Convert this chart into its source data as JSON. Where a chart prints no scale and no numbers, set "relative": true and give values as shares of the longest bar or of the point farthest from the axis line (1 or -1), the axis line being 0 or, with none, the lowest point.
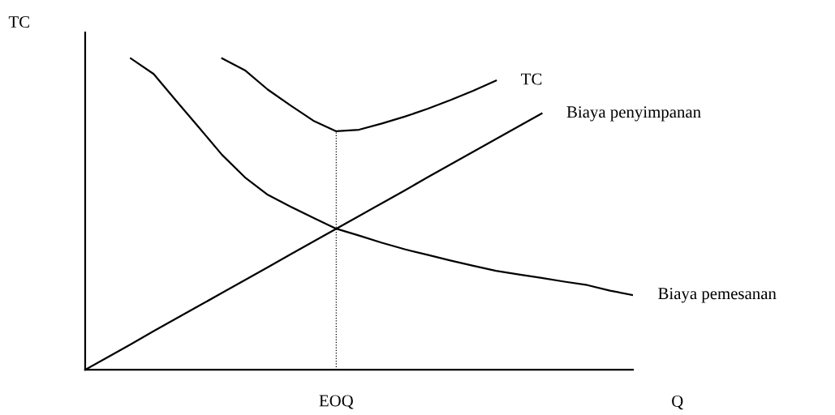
{
  "chart_data": {
    "type": "line",
    "relative": true,
    "ylabel": "TC",
    "xlabel": "Q",
    "categories": [
      null,
      null,
      null,
      null,
      null,
      null,
      null,
      null,
      null,
      null,
      null,
      null,
      null,
      null,
      null,
      null,
      null,
      null,
      null,
      null,
      null,
      null,
      null,
      null,
      null
    ],
    "marker": "none",
    "legend": false,
    "annotations": [
      "EOQ"
    ],
    "series": [
      {
        "name": "TC",
        "color": "#000000",
        "values": [
          null,
          null,
          null,
          null,
          null,
          null,
          1.0,
          0.962,
          0.9,
          0.849,
          0.8,
          0.766,
          0.771,
          0.791,
          0.813,
          0.838,
          0.866,
          0.896,
          0.929,
          null,
          null,
          null,
          null,
          null,
          null
        ]
      },
      {
        "name": "Biaya penyimpanan",
        "color": "#000000",
        "values": [
          0,
          0.041,
          0.082,
          0.124,
          0.165,
          0.206,
          0.247,
          0.288,
          0.329,
          0.371,
          0.412,
          0.453,
          0.494,
          0.535,
          0.576,
          0.618,
          0.659,
          0.7,
          0.741,
          0.782,
          0.823,
          null,
          null,
          null,
          null
        ]
      },
      {
        "name": "Biaya pemesanan",
        "color": "#000000",
        "values": [
          null,
          null,
          1.0,
          0.95,
          0.863,
          0.777,
          0.69,
          0.618,
          0.562,
          0.524,
          0.488,
          0.453,
          0.431,
          0.408,
          0.387,
          0.369,
          0.351,
          0.334,
          0.318,
          0.306,
          0.295,
          0.283,
          0.272,
          0.254,
          0.24
        ]
      }
    ]
  }
}
